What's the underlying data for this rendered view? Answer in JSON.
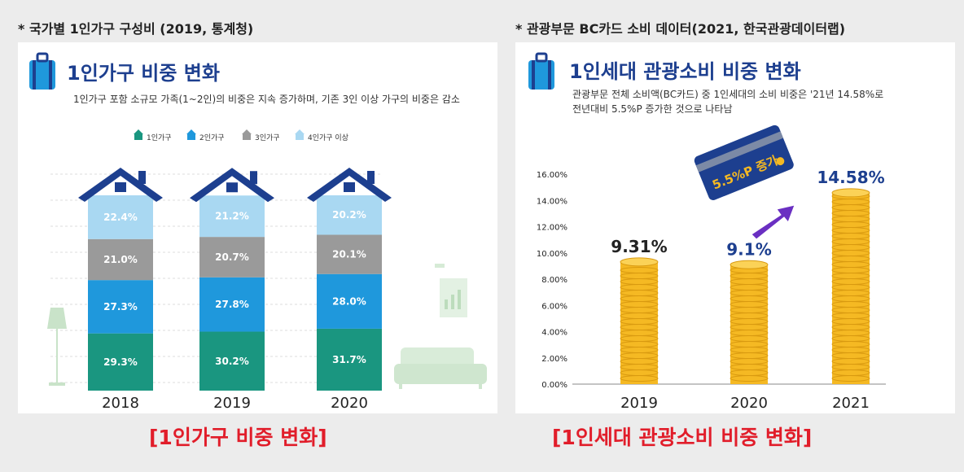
{
  "left": {
    "source": "* 국가별 1인가구 구성비 (2019, 통계청)",
    "title": "1인가구 비중 변화",
    "subtitle": "1인가구 포함 소규모 가족(1~2인)의 비중은 지속 증가하며, 기존 3인 이상 가구의 비중은 감소",
    "caption": "[1인가구 비중 변화]"
  },
  "right": {
    "source": "* 관광부문 BC카드 소비 데이터(2021, 한국관광데이터랩)",
    "title": "1인세대 관광소비 비중 변화",
    "subtitle_line1": "관광부문 전체 소비액(BC카드) 중 1인세대의 소비 비중은 '21년 14.58%로",
    "subtitle_line2": "전년대비 5.5%P 증가한 것으로 나타남",
    "badge": "5.5%P 증가",
    "caption": "[1인세대 관광소비 비중 변화]"
  },
  "colors": {
    "title": "#1d3f8f",
    "seg1": "#1a9680",
    "seg2": "#1f98dc",
    "seg3": "#9a9a9a",
    "seg4": "#a9d8f2",
    "roof": "#1d3f8f",
    "coin": "#f5b923",
    "coin_dark": "#d99a10",
    "caption": "#e11d2a"
  },
  "chart_data": [
    {
      "type": "bar",
      "stacked": true,
      "categories": [
        "2018",
        "2019",
        "2020"
      ],
      "series": [
        {
          "name": "1인가구",
          "values": [
            29.3,
            30.2,
            31.7
          ]
        },
        {
          "name": "2인가구",
          "values": [
            27.3,
            27.8,
            28.0
          ]
        },
        {
          "name": "3인가구",
          "values": [
            21.0,
            20.7,
            20.1
          ]
        },
        {
          "name": "4인가구 이상",
          "values": [
            22.4,
            21.2,
            20.2
          ]
        }
      ],
      "value_labels": [
        [
          "29.3%",
          "30.2%",
          "31.7%"
        ],
        [
          "27.3%",
          "27.8%",
          "28.0%"
        ],
        [
          "21.0%",
          "20.7%",
          "20.1%"
        ],
        [
          "22.4%",
          "21.2%",
          "20.2%"
        ]
      ],
      "legend": "top"
    },
    {
      "type": "bar",
      "categories": [
        "2019",
        "2020",
        "2021"
      ],
      "values": [
        9.31,
        9.1,
        14.58
      ],
      "value_labels": [
        "9.31%",
        "9.1%",
        "14.58%"
      ],
      "ylim": [
        0,
        16
      ],
      "yticks": [
        "0.00%",
        "2.00%",
        "4.00%",
        "6.00%",
        "8.00%",
        "10.00%",
        "12.00%",
        "14.00%",
        "16.00%"
      ]
    }
  ]
}
